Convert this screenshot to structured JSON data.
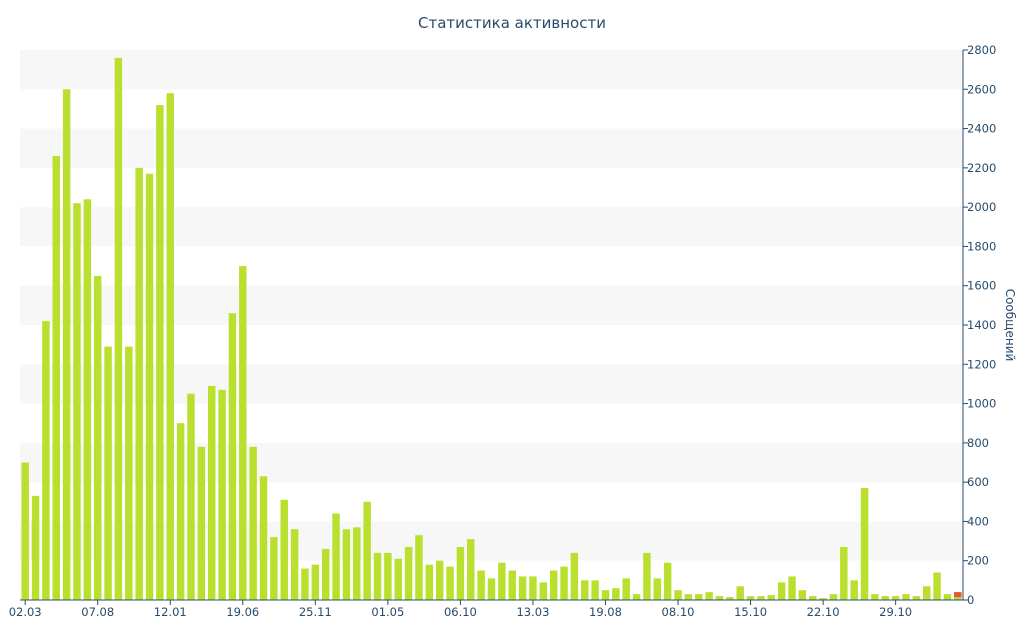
{
  "chart_data": {
    "type": "bar",
    "title": "Статистика активности",
    "ylabel": "Сообщений",
    "xlabel": "",
    "ylim": [
      0,
      2800
    ],
    "y_ticks": [
      0,
      200,
      400,
      600,
      800,
      1000,
      1200,
      1400,
      1600,
      1800,
      2000,
      2200,
      2400,
      2600,
      2800
    ],
    "y_axis_side": "right",
    "grid": "alternating horizontal bands",
    "x_tick_labels": [
      {
        "label": "02.03",
        "index": 0
      },
      {
        "label": "07.08",
        "index": 7
      },
      {
        "label": "12.01",
        "index": 14
      },
      {
        "label": "19.06",
        "index": 21
      },
      {
        "label": "25.11",
        "index": 28
      },
      {
        "label": "01.05",
        "index": 35
      },
      {
        "label": "06.10",
        "index": 42
      },
      {
        "label": "13.03",
        "index": 49
      },
      {
        "label": "19.08",
        "index": 56
      },
      {
        "label": "08.10",
        "index": 63
      },
      {
        "label": "15.10",
        "index": 70
      },
      {
        "label": "22.10",
        "index": 77
      },
      {
        "label": "29.10",
        "index": 84
      }
    ],
    "colors": {
      "bar": "#b9e02f",
      "bar_last": "#e8543a",
      "axis": "#274b6d",
      "band": "#f7f7f7"
    },
    "series": [
      {
        "values": [
          700,
          530,
          1420,
          2260,
          2600,
          2020,
          2040,
          1650,
          1290,
          2760,
          1290,
          2200,
          2170,
          2520,
          2580,
          900,
          1050,
          780,
          1090,
          1070,
          1460,
          1700,
          780,
          630,
          320,
          510,
          360,
          160,
          180,
          260,
          440,
          360,
          370,
          500,
          240,
          240,
          210,
          270,
          330,
          180,
          200,
          170,
          270,
          310,
          150,
          110,
          190,
          150,
          120,
          120,
          90,
          150,
          170,
          240,
          100,
          100,
          50,
          60,
          110,
          30,
          240,
          110,
          190,
          50,
          30,
          30,
          40,
          20,
          15,
          70,
          20,
          20,
          25,
          90,
          120,
          50,
          20,
          10,
          30,
          270,
          100,
          570,
          30,
          20,
          20,
          30,
          20,
          70,
          140,
          30,
          40
        ]
      }
    ]
  }
}
